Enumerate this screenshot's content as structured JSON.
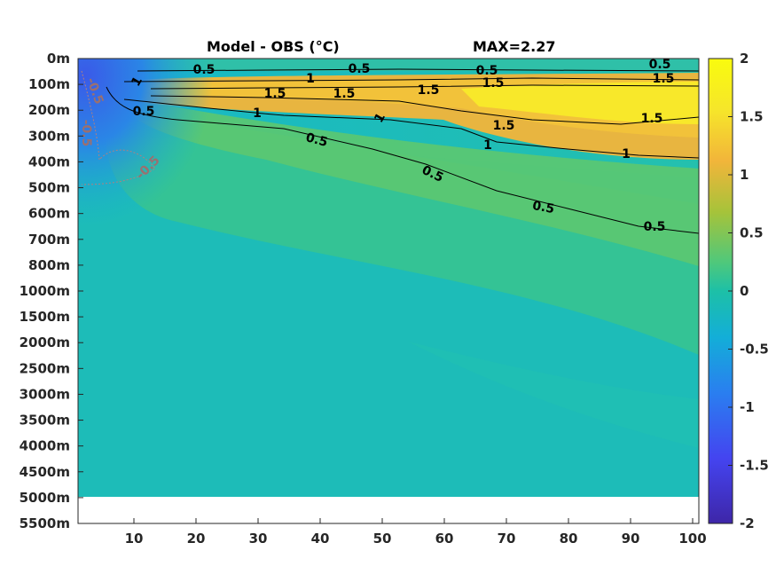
{
  "chart_data": {
    "type": "heatmap",
    "title_left": "Model - OBS (°C)",
    "title_right": "MAX=2.27",
    "x_ticks": [
      "10",
      "20",
      "30",
      "40",
      "50",
      "60",
      "70",
      "80",
      "90",
      "100"
    ],
    "x_range": [
      1,
      101
    ],
    "y_ticks": [
      "0m",
      "100m",
      "200m",
      "300m",
      "400m",
      "500m",
      "600m",
      "700m",
      "800m",
      "1000m",
      "1500m",
      "2000m",
      "2500m",
      "3000m",
      "3500m",
      "4000m",
      "4500m",
      "5000m",
      "5500m"
    ],
    "colorbar": {
      "ticks": [
        "2",
        "1.5",
        "1",
        "0.5",
        "0",
        "-0.5",
        "-1",
        "-1.5",
        "-2"
      ],
      "range": [
        -2,
        2
      ],
      "colormap": "parula",
      "colors": [
        "#3e26a8",
        "#4444f0",
        "#2a7ef0",
        "#13aed8",
        "#1dc0a7",
        "#4ec87c",
        "#a6c33a",
        "#f2b53a",
        "#f6e62a",
        "#f9fb0e"
      ]
    },
    "contour_levels": [
      "0.5",
      "1",
      "1.5",
      "-0.5"
    ],
    "contour_label_items": [
      {
        "text": "0.5"
      },
      {
        "text": "0.5"
      },
      {
        "text": "0.5"
      },
      {
        "text": "0.5"
      },
      {
        "text": "1"
      },
      {
        "text": "1.5"
      },
      {
        "text": "1.5"
      },
      {
        "text": "1.5"
      },
      {
        "text": "1.5"
      },
      {
        "text": "1"
      },
      {
        "text": "0.5"
      },
      {
        "text": "1"
      },
      {
        "text": "1"
      },
      {
        "text": "0.5"
      },
      {
        "text": "1.5"
      },
      {
        "text": "1.5"
      },
      {
        "text": "1"
      },
      {
        "text": "0.5"
      },
      {
        "text": "1"
      },
      {
        "text": "1.5"
      },
      {
        "text": "0.5"
      },
      {
        "text": "0.5"
      },
      {
        "text": "-0.5"
      },
      {
        "text": "-0.5"
      },
      {
        "text": "-0.5"
      }
    ],
    "grid": false
  }
}
